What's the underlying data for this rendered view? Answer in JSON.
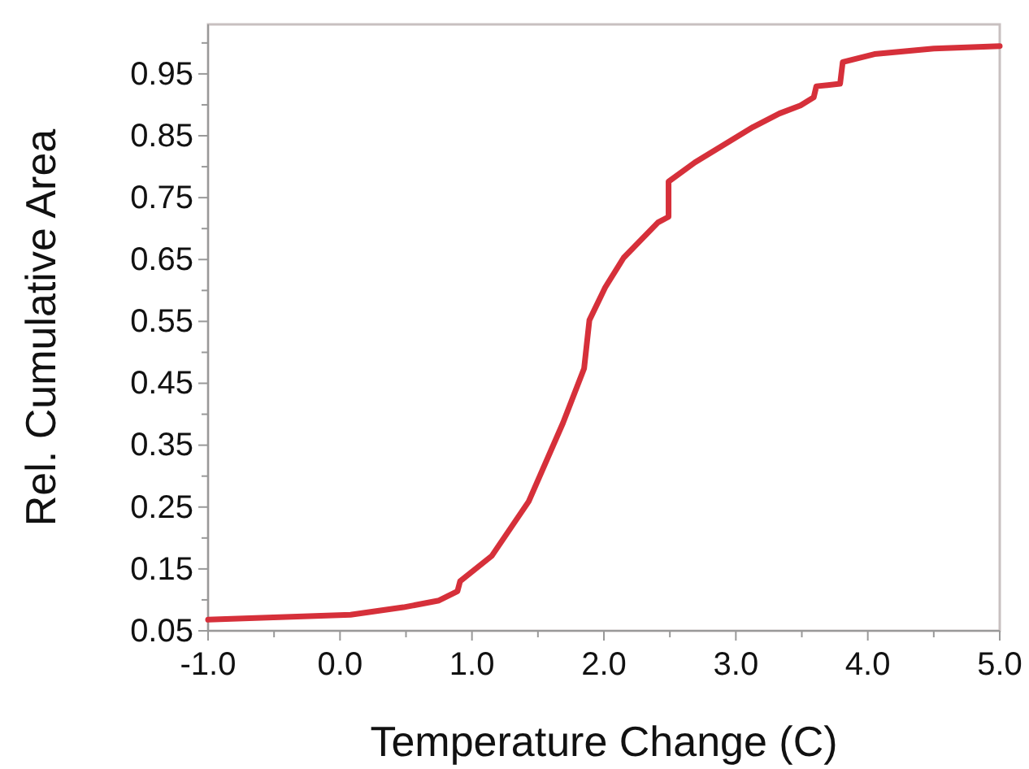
{
  "chart_data": {
    "type": "line",
    "xlabel": "Temperature Change (C)",
    "ylabel": "Rel. Cumulative Area",
    "xlim": [
      -1.0,
      5.0
    ],
    "ylim": [
      0.05,
      1.03
    ],
    "xticks": [
      {
        "value": -1,
        "label": "-1.0"
      },
      {
        "value": -0.5,
        "label": null
      },
      {
        "value": 0,
        "label": "0.0"
      },
      {
        "value": 0.5,
        "label": null
      },
      {
        "value": 1,
        "label": "1.0"
      },
      {
        "value": 1.5,
        "label": null
      },
      {
        "value": 2,
        "label": "2.0"
      },
      {
        "value": 2.5,
        "label": null
      },
      {
        "value": 3,
        "label": "3.0"
      },
      {
        "value": 3.5,
        "label": null
      },
      {
        "value": 4,
        "label": "4.0"
      },
      {
        "value": 4.5,
        "label": null
      },
      {
        "value": 5,
        "label": "5.0"
      }
    ],
    "yticks": [
      0.05,
      {
        "value": 0.1,
        "label": null
      },
      0.15,
      {
        "value": 0.2,
        "label": null
      },
      0.25,
      {
        "value": 0.3,
        "label": null
      },
      0.35,
      {
        "value": 0.4,
        "label": null
      },
      0.45,
      {
        "value": 0.5,
        "label": null
      },
      0.55,
      {
        "value": 0.6,
        "label": null
      },
      0.65,
      {
        "value": 0.7,
        "label": null
      },
      0.75,
      {
        "value": 0.8,
        "label": null
      },
      0.85,
      {
        "value": 0.9,
        "label": null
      },
      0.95,
      {
        "value": 1.0,
        "label": null
      }
    ],
    "grid": false,
    "marker": "none",
    "line_style": "solid",
    "series": [
      {
        "color": "#d6303a",
        "x": [
          -1.0,
          0.08,
          0.48,
          0.75,
          0.89,
          0.91,
          1.15,
          1.43,
          1.69,
          1.85,
          1.89,
          2.01,
          2.15,
          2.41,
          2.49,
          2.49,
          2.69,
          2.89,
          3.13,
          3.33,
          3.49,
          3.59,
          3.61,
          3.79,
          3.81,
          4.05,
          4.5,
          5.0
        ],
        "values": [
          0.068,
          0.076,
          0.088,
          0.099,
          0.114,
          0.13,
          0.171,
          0.259,
          0.386,
          0.474,
          0.552,
          0.605,
          0.653,
          0.71,
          0.719,
          0.776,
          0.807,
          0.833,
          0.864,
          0.886,
          0.899,
          0.912,
          0.93,
          0.934,
          0.969,
          0.982,
          0.991,
          0.995
        ]
      }
    ]
  }
}
